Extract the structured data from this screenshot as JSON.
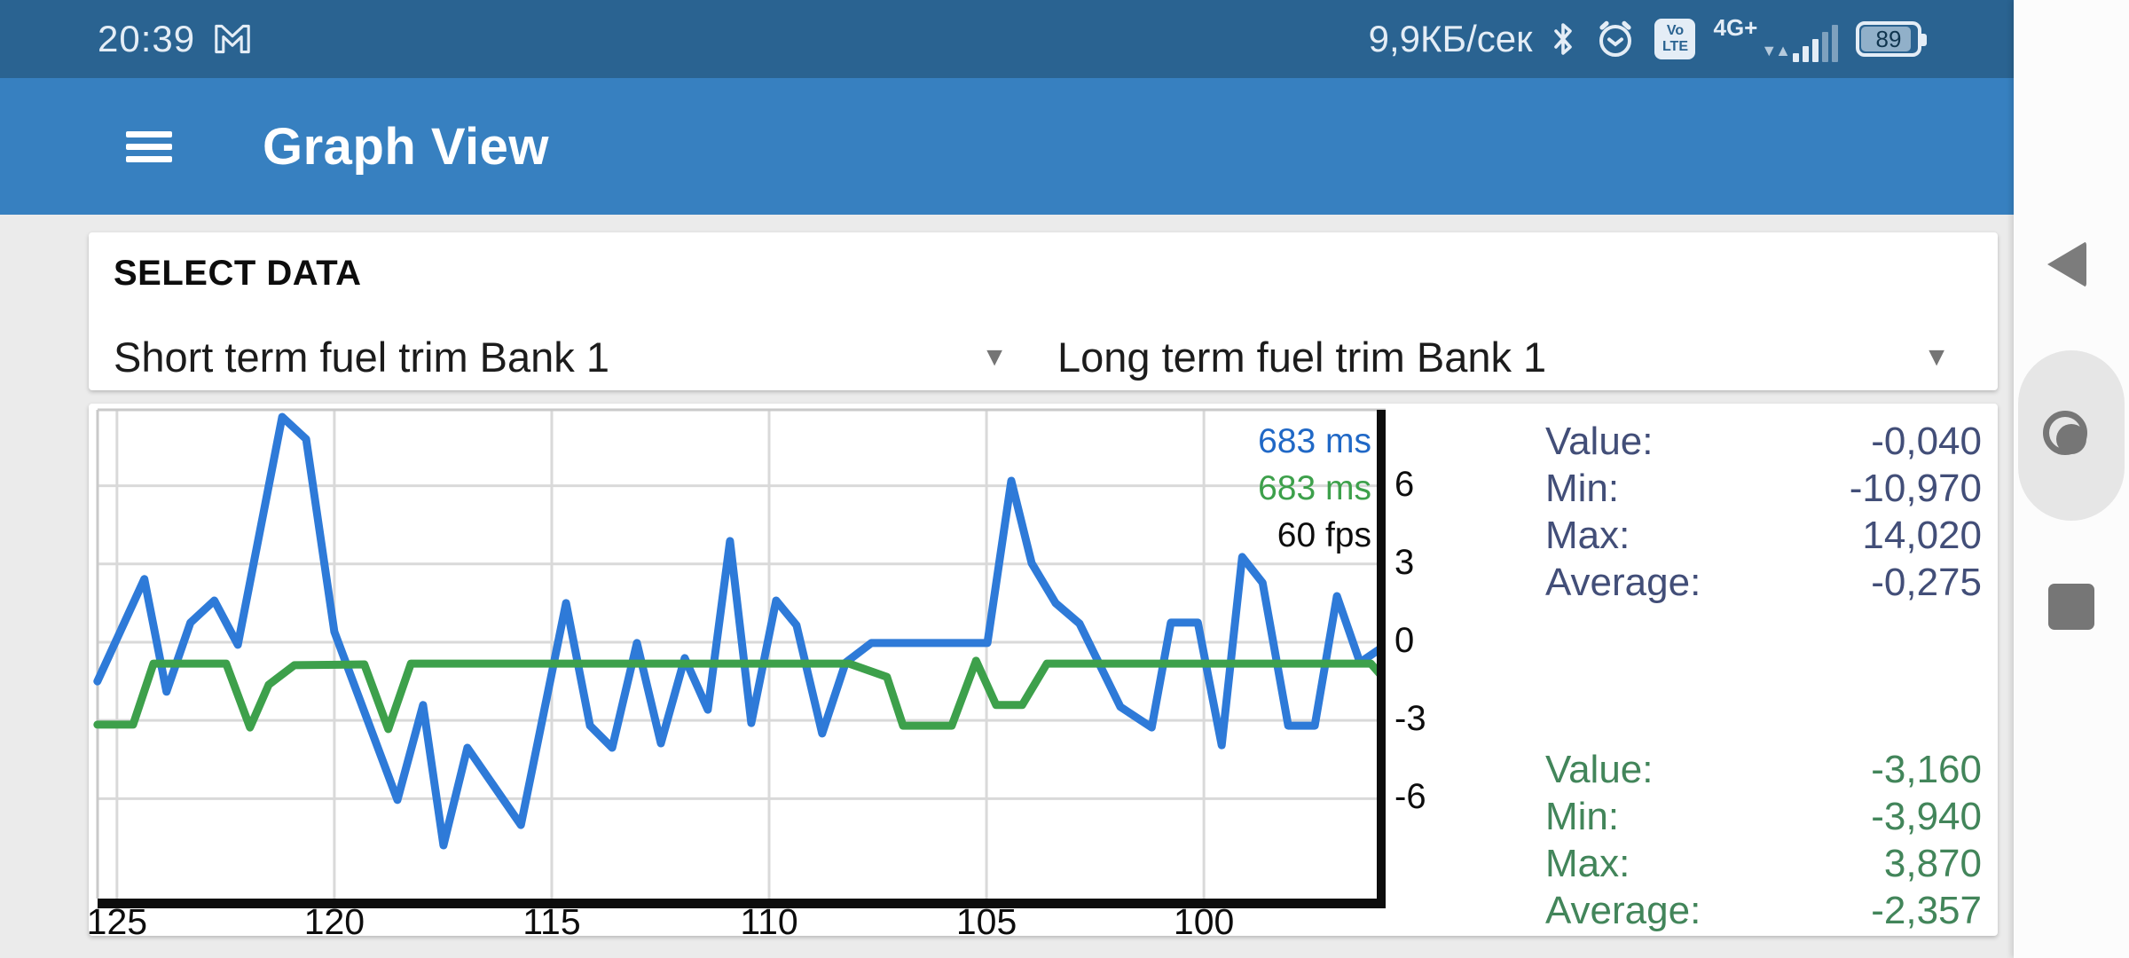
{
  "status_bar": {
    "time": "20:39",
    "net_speed": "9,9КБ/сек",
    "volte_line1": "Vo",
    "volte_line2": "LTE",
    "network_type": "4G+",
    "battery_percent": "89"
  },
  "app_bar": {
    "title": "Graph View"
  },
  "select_card": {
    "heading": "SELECT DATA",
    "spinner1_value": "Short term fuel trim Bank 1",
    "spinner2_value": "Long term fuel trim Bank 1",
    "arrow_glyph": "▼"
  },
  "graph_overlay": {
    "series1_rate": "683 ms",
    "series2_rate": "683 ms",
    "fps": "60 fps"
  },
  "stats_series1": {
    "value_label": "Value:",
    "value": "-0,040",
    "min_label": "Min:",
    "min": "-10,970",
    "max_label": "Max:",
    "max": "14,020",
    "avg_label": "Average:",
    "avg": "-0,275"
  },
  "stats_series2": {
    "value_label": "Value:",
    "value": "-3,160",
    "min_label": "Min:",
    "min": "-3,940",
    "max_label": "Max:",
    "max": "3,870",
    "avg_label": "Average:",
    "avg": "-2,357"
  },
  "colors": {
    "status_bar_bg": "#2a6391",
    "app_bar_bg": "#3780c0",
    "series1_line": "#2e7ad8",
    "series2_line": "#3da04b",
    "series1_label": "#2068c6",
    "series2_label": "#3da04b",
    "fps_label": "#0d0d0d",
    "stats1_text": "#424e78",
    "stats2_text": "#42855a",
    "grid": "#d9d9d9",
    "frame_light": "#c9c9c9",
    "axis": "#0d0d0d"
  },
  "chart_data": {
    "type": "line",
    "title": "",
    "xlabel": "",
    "ylabel": "",
    "x_ticks": [
      125,
      120,
      115,
      110,
      105,
      100
    ],
    "y_ticks": [
      6,
      3,
      0,
      -3,
      -6
    ],
    "xlim": [
      125.65,
      95.82
    ],
    "ylim": [
      -11.26,
      9.15
    ],
    "grid": true,
    "legend_position": "none",
    "x_axis_reversed": true,
    "series": [
      {
        "name": "Short term fuel trim Bank 1",
        "color": "#2e7ad8",
        "points": [
          [
            125.45,
            -1.5
          ],
          [
            124.37,
            2.42
          ],
          [
            123.86,
            -1.9
          ],
          [
            123.31,
            0.75
          ],
          [
            122.76,
            1.6
          ],
          [
            122.22,
            -0.1
          ],
          [
            121.2,
            8.64
          ],
          [
            120.65,
            7.79
          ],
          [
            120.0,
            0.4
          ],
          [
            118.55,
            -6.05
          ],
          [
            117.96,
            -2.41
          ],
          [
            117.49,
            -7.79
          ],
          [
            116.94,
            -4.05
          ],
          [
            115.71,
            -7.01
          ],
          [
            114.67,
            1.5
          ],
          [
            114.12,
            -3.2
          ],
          [
            113.61,
            -4.05
          ],
          [
            113.04,
            -0.03
          ],
          [
            112.49,
            -3.88
          ],
          [
            111.94,
            -0.61
          ],
          [
            111.41,
            -2.59
          ],
          [
            110.9,
            3.88
          ],
          [
            110.41,
            -3.1
          ],
          [
            109.84,
            1.6
          ],
          [
            109.37,
            0.65
          ],
          [
            108.78,
            -3.5
          ],
          [
            108.24,
            -0.78
          ],
          [
            107.65,
            -0.03
          ],
          [
            104.98,
            -0.03
          ],
          [
            104.43,
            6.19
          ],
          [
            103.96,
            3.03
          ],
          [
            103.41,
            1.5
          ],
          [
            102.86,
            0.71
          ],
          [
            101.92,
            -2.48
          ],
          [
            101.2,
            -3.27
          ],
          [
            100.76,
            0.75
          ],
          [
            100.14,
            0.75
          ],
          [
            99.59,
            -3.95
          ],
          [
            99.12,
            3.27
          ],
          [
            98.65,
            2.28
          ],
          [
            98.06,
            -3.2
          ],
          [
            97.45,
            -3.2
          ],
          [
            96.94,
            1.77
          ],
          [
            96.41,
            -0.78
          ],
          [
            95.9,
            -0.2
          ]
        ]
      },
      {
        "name": "Long term fuel trim Bank 1",
        "color": "#3da04b",
        "points": [
          [
            125.45,
            -3.16
          ],
          [
            124.63,
            -3.16
          ],
          [
            124.16,
            -0.82
          ],
          [
            122.49,
            -0.82
          ],
          [
            121.94,
            -3.27
          ],
          [
            121.51,
            -1.63
          ],
          [
            120.92,
            -0.88
          ],
          [
            119.31,
            -0.85
          ],
          [
            118.76,
            -3.33
          ],
          [
            118.24,
            -0.82
          ],
          [
            108.16,
            -0.82
          ],
          [
            107.29,
            -1.33
          ],
          [
            106.92,
            -3.2
          ],
          [
            105.8,
            -3.2
          ],
          [
            105.24,
            -0.71
          ],
          [
            104.78,
            -2.41
          ],
          [
            104.18,
            -2.41
          ],
          [
            103.61,
            -0.82
          ],
          [
            96.16,
            -0.82
          ],
          [
            95.86,
            -1.39
          ]
        ]
      }
    ]
  }
}
